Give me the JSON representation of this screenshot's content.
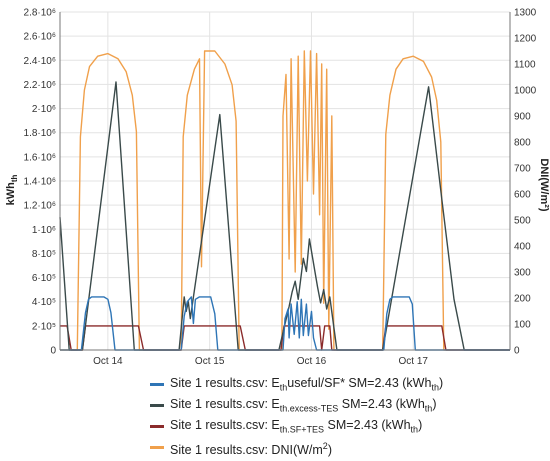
{
  "chart_data": {
    "type": "line",
    "ylabel_left": "kWh",
    "ylabel_left_sub": "th",
    "ylabel_right": "DNI(W/m²)",
    "y_left_range": [
      0,
      2800000
    ],
    "y_right_range": [
      0,
      1300
    ],
    "y_left_ticks": [
      {
        "v": 0,
        "t": "0"
      },
      {
        "v": 200000,
        "t": "2·10⁵"
      },
      {
        "v": 400000,
        "t": "4·10⁵"
      },
      {
        "v": 600000,
        "t": "6·10⁵"
      },
      {
        "v": 800000,
        "t": "8·10⁵"
      },
      {
        "v": 1000000,
        "t": "1·10⁶"
      },
      {
        "v": 1200000,
        "t": "1.2·10⁶"
      },
      {
        "v": 1400000,
        "t": "1.4·10⁶"
      },
      {
        "v": 1600000,
        "t": "1.6·10⁶"
      },
      {
        "v": 1800000,
        "t": "1.8·10⁶"
      },
      {
        "v": 2000000,
        "t": "2·10⁶"
      },
      {
        "v": 2200000,
        "t": "2.2·10⁶"
      },
      {
        "v": 2400000,
        "t": "2.4·10⁶"
      },
      {
        "v": 2600000,
        "t": "2.6·10⁶"
      },
      {
        "v": 2800000,
        "t": "2.8·10⁶"
      }
    ],
    "y_right_ticks": [
      0,
      100,
      200,
      300,
      400,
      500,
      600,
      700,
      800,
      900,
      1000,
      1100,
      1200,
      1300
    ],
    "x_range": [
      13.53,
      17.95
    ],
    "x_ticks": [
      {
        "v": 14.0,
        "t": "Oct 14"
      },
      {
        "v": 15.0,
        "t": "Oct 15"
      },
      {
        "v": 16.0,
        "t": "Oct 16"
      },
      {
        "v": 17.0,
        "t": "Oct 17"
      }
    ],
    "grid": true,
    "legend_position": "bottom",
    "series": [
      {
        "name": "Site 1 results.csv: E_th useful/SF* SM=2.43 (kWh_th)",
        "axis": "left",
        "color": "#2e75b6",
        "points": [
          [
            13.53,
            0
          ],
          [
            13.74,
            0
          ],
          [
            13.78,
            310000
          ],
          [
            13.81,
            420000
          ],
          [
            13.84,
            440000
          ],
          [
            13.96,
            440000
          ],
          [
            14.0,
            420000
          ],
          [
            14.03,
            310000
          ],
          [
            14.07,
            0
          ],
          [
            14.72,
            0
          ],
          [
            14.75,
            280000
          ],
          [
            14.78,
            400000
          ],
          [
            14.82,
            440000
          ],
          [
            14.84,
            220000
          ],
          [
            14.86,
            420000
          ],
          [
            14.9,
            440000
          ],
          [
            15.01,
            440000
          ],
          [
            15.05,
            300000
          ],
          [
            15.08,
            0
          ],
          [
            15.72,
            0
          ],
          [
            15.74,
            260000
          ],
          [
            15.77,
            340000
          ],
          [
            15.78,
            100000
          ],
          [
            15.8,
            380000
          ],
          [
            15.83,
            130000
          ],
          [
            15.86,
            400000
          ],
          [
            15.88,
            100000
          ],
          [
            15.9,
            420000
          ],
          [
            15.92,
            120000
          ],
          [
            15.95,
            380000
          ],
          [
            15.97,
            120000
          ],
          [
            16.0,
            320000
          ],
          [
            16.02,
            100000
          ],
          [
            16.05,
            0
          ],
          [
            16.71,
            0
          ],
          [
            16.74,
            300000
          ],
          [
            16.77,
            420000
          ],
          [
            16.8,
            440000
          ],
          [
            16.96,
            440000
          ],
          [
            16.99,
            380000
          ],
          [
            17.02,
            0
          ],
          [
            17.95,
            0
          ]
        ]
      },
      {
        "name": "Site 1 results.csv: E_th.excess-TES SM=2.43 (kWh_th)",
        "axis": "left",
        "color": "#3a4a4a",
        "points": [
          [
            13.53,
            1100000
          ],
          [
            13.62,
            0
          ],
          [
            13.75,
            0
          ],
          [
            14.08,
            2220000
          ],
          [
            14.26,
            0
          ],
          [
            14.7,
            0
          ],
          [
            14.75,
            440000
          ],
          [
            14.77,
            320000
          ],
          [
            14.79,
            400000
          ],
          [
            14.81,
            260000
          ],
          [
            15.1,
            1950000
          ],
          [
            15.28,
            0
          ],
          [
            15.68,
            0
          ],
          [
            15.73,
            180000
          ],
          [
            15.78,
            360000
          ],
          [
            15.81,
            480000
          ],
          [
            15.84,
            570000
          ],
          [
            15.87,
            420000
          ],
          [
            15.92,
            760000
          ],
          [
            15.95,
            650000
          ],
          [
            15.98,
            920000
          ],
          [
            16.03,
            670000
          ],
          [
            16.06,
            520000
          ],
          [
            16.09,
            390000
          ],
          [
            16.12,
            500000
          ],
          [
            16.15,
            340000
          ],
          [
            16.18,
            440000
          ],
          [
            16.25,
            0
          ],
          [
            16.7,
            0
          ],
          [
            17.15,
            2180000
          ],
          [
            17.28,
            1250000
          ],
          [
            17.4,
            420000
          ],
          [
            17.5,
            0
          ],
          [
            17.95,
            0
          ]
        ]
      },
      {
        "name": "Site 1 results.csv: E_th.SF+TES SM=2.43 (kWh_th)",
        "axis": "left",
        "color": "#8b2b2b",
        "points": [
          [
            13.53,
            200000
          ],
          [
            13.6,
            200000
          ],
          [
            13.64,
            0
          ],
          [
            13.75,
            0
          ],
          [
            13.78,
            200000
          ],
          [
            14.3,
            200000
          ],
          [
            14.35,
            0
          ],
          [
            14.72,
            0
          ],
          [
            14.75,
            200000
          ],
          [
            15.3,
            200000
          ],
          [
            15.35,
            0
          ],
          [
            15.7,
            0
          ],
          [
            15.73,
            200000
          ],
          [
            16.08,
            200000
          ],
          [
            16.1,
            0
          ],
          [
            16.13,
            200000
          ],
          [
            16.18,
            200000
          ],
          [
            16.2,
            0
          ],
          [
            16.7,
            0
          ],
          [
            16.73,
            200000
          ],
          [
            17.28,
            200000
          ],
          [
            17.32,
            0
          ],
          [
            17.95,
            0
          ]
        ]
      },
      {
        "name": "Site 1 results.csv: DNI(W/m²)",
        "axis": "right",
        "color": "#f0a04b",
        "points": [
          [
            13.53,
            0
          ],
          [
            13.7,
            0
          ],
          [
            13.73,
            820
          ],
          [
            13.77,
            1000
          ],
          [
            13.82,
            1090
          ],
          [
            13.9,
            1130
          ],
          [
            14.0,
            1140
          ],
          [
            14.1,
            1120
          ],
          [
            14.18,
            1070
          ],
          [
            14.24,
            980
          ],
          [
            14.28,
            840
          ],
          [
            14.31,
            0
          ],
          [
            14.72,
            0
          ],
          [
            14.74,
            820
          ],
          [
            14.78,
            980
          ],
          [
            14.85,
            1080
          ],
          [
            14.9,
            1120
          ],
          [
            14.92,
            320
          ],
          [
            14.95,
            1150
          ],
          [
            15.05,
            1150
          ],
          [
            15.15,
            1100
          ],
          [
            15.22,
            1020
          ],
          [
            15.26,
            880
          ],
          [
            15.29,
            0
          ],
          [
            15.71,
            0
          ],
          [
            15.72,
            900
          ],
          [
            15.75,
            1060
          ],
          [
            15.78,
            350
          ],
          [
            15.8,
            1120
          ],
          [
            15.84,
            300
          ],
          [
            15.87,
            1130
          ],
          [
            15.9,
            330
          ],
          [
            15.93,
            1150
          ],
          [
            15.96,
            650
          ],
          [
            15.99,
            1150
          ],
          [
            16.02,
            600
          ],
          [
            16.05,
            1140
          ],
          [
            16.08,
            520
          ],
          [
            16.1,
            1100
          ],
          [
            16.12,
            180
          ],
          [
            16.15,
            1080
          ],
          [
            16.17,
            80
          ],
          [
            16.2,
            900
          ],
          [
            16.22,
            0
          ],
          [
            16.7,
            0
          ],
          [
            16.73,
            830
          ],
          [
            16.77,
            980
          ],
          [
            16.83,
            1080
          ],
          [
            16.9,
            1120
          ],
          [
            17.0,
            1130
          ],
          [
            17.1,
            1110
          ],
          [
            17.18,
            1050
          ],
          [
            17.23,
            960
          ],
          [
            17.27,
            800
          ],
          [
            17.3,
            0
          ],
          [
            17.95,
            0
          ]
        ]
      }
    ]
  },
  "legend": [
    {
      "pre": "Site 1 results.csv: E",
      "sub1": "th",
      "mid": "useful/SF* SM=2.43  (kWh",
      "sub2": "th",
      "post": ")",
      "color": "#2e75b6"
    },
    {
      "pre": "Site 1 results.csv: E",
      "sub1": "th.excess-TES",
      "mid": " SM=2.43 (kWh",
      "sub2": "th",
      "post": ")",
      "color": "#3a4a4a"
    },
    {
      "pre": "Site 1 results.csv: E",
      "sub1": "th.SF+TES",
      "mid": " SM=2.43 (kWh",
      "sub2": "th",
      "post": ")",
      "color": "#8b2b2b"
    },
    {
      "pre": "Site 1 results.csv: DNI(W/m",
      "sub1": "",
      "mid": "",
      "sub2": "",
      "post": "2)",
      "color": "#f0a04b"
    }
  ]
}
